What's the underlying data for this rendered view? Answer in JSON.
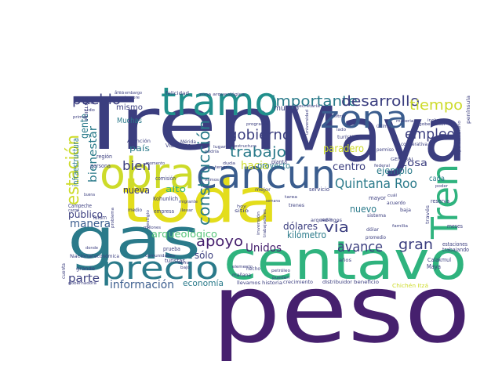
{
  "palette": {
    "navy": "#3b3e7f",
    "purple": "#46206e",
    "teal": "#21908c",
    "teal2": "#2a7a8a",
    "green": "#2fb37e",
    "lime": "#cddb2a",
    "yellow": "#e3dd1c",
    "blue": "#3b5d8e",
    "mint": "#58c57a"
  },
  "words": [
    {
      "text": "peso",
      "color": "#46206e",
      "weight": 100
    },
    {
      "text": "Maya",
      "color": "#3b3e7f",
      "weight": 95
    },
    {
      "text": "Tren",
      "color": "#3b3e7f",
      "weight": 92
    },
    {
      "text": "toda",
      "color": "#e3dd1c",
      "weight": 85
    },
    {
      "text": "centavo",
      "color": "#2fb37e",
      "weight": 80
    },
    {
      "text": "gas",
      "color": "#2a7a8a",
      "weight": 78
    },
    {
      "text": "tramo",
      "color": "#21908c",
      "weight": 72
    },
    {
      "text": "cancún",
      "color": "#3b5d8e",
      "weight": 70
    },
    {
      "text": "obra",
      "color": "#cddb2a",
      "weight": 68
    },
    {
      "text": "precio",
      "color": "#2a7a8a",
      "weight": 66
    },
    {
      "text": "zona",
      "color": "#3b5d8e",
      "weight": 60
    },
    {
      "text": "Tren",
      "color": "#2fb37e",
      "weight": 55
    },
    {
      "text": "construcción",
      "color": "#2a7a8a",
      "weight": 45
    },
    {
      "text": "estación",
      "color": "#cddb2a",
      "weight": 44
    },
    {
      "text": "importante",
      "color": "#2a7a8a",
      "weight": 42
    },
    {
      "text": "desarrollo",
      "color": "#3b3e7f",
      "weight": 42
    },
    {
      "text": "Quintana Roo",
      "color": "#2a7a8a",
      "weight": 40
    },
    {
      "text": "tiempo",
      "color": "#cddb2a",
      "weight": 40
    },
    {
      "text": "pueblo",
      "color": "#3b3e7f",
      "weight": 38
    },
    {
      "text": "gobierno",
      "color": "#3b3e7f",
      "weight": 38
    },
    {
      "text": "trabajo",
      "color": "#2a7a8a",
      "weight": 38
    },
    {
      "text": "apoyo",
      "color": "#46206e",
      "weight": 38
    },
    {
      "text": "empleo",
      "color": "#3b3e7f",
      "weight": 36
    },
    {
      "text": "avance",
      "color": "#3b3e7f",
      "weight": 36
    },
    {
      "text": "gran",
      "color": "#3b3e7f",
      "weight": 36
    },
    {
      "text": "vía",
      "color": "#3b3e7f",
      "weight": 34
    },
    {
      "text": "hacia",
      "color": "#cddb2a",
      "weight": 32
    },
    {
      "text": "bien",
      "color": "#3b3e7f",
      "weight": 32
    },
    {
      "text": "Unidos",
      "color": "#46206e",
      "weight": 32
    },
    {
      "text": "información",
      "color": "#3b5d8e",
      "weight": 32
    },
    {
      "text": "parte",
      "color": "#3b3e7f",
      "weight": 32
    },
    {
      "text": "manera",
      "color": "#3b5d8e",
      "weight": 30
    },
    {
      "text": "arqueológico",
      "color": "#58c57a",
      "weight": 30
    },
    {
      "text": "bienestar",
      "color": "#2a7a8a",
      "weight": 30
    },
    {
      "text": "centro",
      "color": "#3b3e7f",
      "weight": 30
    },
    {
      "text": "cosa",
      "color": "#3b3e7f",
      "weight": 30
    },
    {
      "text": "mundo",
      "color": "#3b3e7f",
      "weight": 28
    },
    {
      "text": "nuevo",
      "color": "#2a7a8a",
      "weight": 28
    },
    {
      "text": "ejemplo",
      "color": "#2a7a8a",
      "weight": 28
    },
    {
      "text": "público",
      "color": "#3b3e7f",
      "weight": 28
    },
    {
      "text": "paradero",
      "color": "#cddb2a",
      "weight": 28
    },
    {
      "text": "kilómetro",
      "color": "#2a7a8a",
      "weight": 28
    },
    {
      "text": "dólares",
      "color": "#3b3e7f",
      "weight": 28
    },
    {
      "text": "nueva",
      "color": "#3b3e7f",
      "weight": 28
    },
    {
      "text": "sólo",
      "color": "#3b3e7f",
      "weight": 28
    },
    {
      "text": "alto",
      "color": "#2fb37e",
      "weight": 28
    },
    {
      "text": "país",
      "color": "#2a7a8a",
      "weight": 28
    },
    {
      "text": "economía",
      "color": "#2a7a8a",
      "weight": 28
    },
    {
      "text": "gente",
      "color": "#2a7a8a",
      "weight": 28
    },
    {
      "text": "proyecto",
      "color": "#2a7a8a",
      "weight": 26
    },
    {
      "text": "mismo",
      "color": "#3b3e7f",
      "weight": 26
    },
    {
      "text": "Muchas",
      "color": "#2a7a8a",
      "weight": 26
    },
    {
      "text": "infraestructura",
      "color": "#2a7a8a",
      "weight": 26
    },
    {
      "text": "cada",
      "color": "#2a7a8a",
      "weight": 20
    },
    {
      "text": "Maya",
      "color": "#3b3e7f",
      "weight": 18
    },
    {
      "text": "Campeche",
      "color": "#3b3e7f",
      "weight": 16
    },
    {
      "text": "planta",
      "color": "#3b3e7f",
      "weight": 16
    },
    {
      "text": "mayor",
      "color": "#3b3e7f",
      "weight": 16
    },
    {
      "text": "reserva",
      "color": "#3b3e7f",
      "weight": 16
    },
    {
      "text": "servicio",
      "color": "#3b3e7f",
      "weight": 16
    },
    {
      "text": "turistas",
      "color": "#3b3e7f",
      "weight": 16
    },
    {
      "text": "prueba",
      "color": "#3b3e7f",
      "weight": 16
    },
    {
      "text": "empresa",
      "color": "#3b3e7f",
      "weight": 16
    },
    {
      "text": "persona",
      "color": "#3b3e7f",
      "weight": 16
    },
    {
      "text": "comisión",
      "color": "#3b3e7f",
      "weight": 16
    },
    {
      "text": "región",
      "color": "#3b3e7f",
      "weight": 16
    },
    {
      "text": "Kohunlich",
      "color": "#3b3e7f",
      "weight": 15
    },
    {
      "text": "Tulum",
      "color": "#3b3e7f",
      "weight": 15
    },
    {
      "text": "Visitantes",
      "color": "#3b3e7f",
      "weight": 15
    },
    {
      "text": "Mérida",
      "color": "#3b3e7f",
      "weight": 14
    },
    {
      "text": "Calakmul",
      "color": "#3b3e7f",
      "weight": 15
    },
    {
      "text": "estaciones",
      "color": "#3b3e7f",
      "weight": 15
    },
    {
      "text": "trabajando",
      "color": "#3b3e7f",
      "weight": 15
    },
    {
      "text": "meses",
      "color": "#3b3e7f",
      "weight": 15
    },
    {
      "text": "Chichén Itzá",
      "color": "#cddb2a",
      "weight": 15
    },
    {
      "text": "distribuidor",
      "color": "#3b3e7f",
      "weight": 14
    },
    {
      "text": "beneficio",
      "color": "#3b3e7f",
      "weight": 14
    },
    {
      "text": "crecimiento",
      "color": "#3b3e7f",
      "weight": 14
    },
    {
      "text": "historia",
      "color": "#3b3e7f",
      "weight": 14
    },
    {
      "text": "llevamos",
      "color": "#3b3e7f",
      "weight": 14
    },
    {
      "text": "mañana",
      "color": "#3b3e7f",
      "weight": 14
    },
    {
      "text": "hecho",
      "color": "#3b3e7f",
      "weight": 14
    },
    {
      "text": "petróleo",
      "color": "#3b3e7f",
      "weight": 13
    },
    {
      "text": "elemento",
      "color": "#3b3e7f",
      "weight": 13
    },
    {
      "text": "grande",
      "color": "#3b3e7f",
      "weight": 14
    },
    {
      "text": "gobernadora",
      "color": "#3b3e7f",
      "weight": 13
    },
    {
      "text": "Nacional",
      "color": "#3b3e7f",
      "weight": 14
    },
    {
      "text": "económica",
      "color": "#3b3e7f",
      "weight": 14
    },
    {
      "text": "cuenta",
      "color": "#3b3e7f",
      "weight": 13
    },
    {
      "text": "pueden",
      "color": "#3b3e7f",
      "weight": 13
    },
    {
      "text": "trenes",
      "color": "#3b3e7f",
      "weight": 13
    },
    {
      "text": "tarea",
      "color": "#3b3e7f",
      "weight": 13
    },
    {
      "text": "sitio",
      "color": "#3b3e7f",
      "weight": 13
    },
    {
      "text": "hoy",
      "color": "#3b3e7f",
      "weight": 13
    },
    {
      "text": "mejor",
      "color": "#3b3e7f",
      "weight": 13
    },
    {
      "text": "sistema",
      "color": "#3b3e7f",
      "weight": 13
    },
    {
      "text": "dólar",
      "color": "#3b3e7f",
      "weight": 13
    },
    {
      "text": "promedio",
      "color": "#3b3e7f",
      "weight": 13
    },
    {
      "text": "años",
      "color": "#3b3e7f",
      "weight": 13
    },
    {
      "text": "arqueólogos",
      "color": "#3b3e7f",
      "weight": 13
    },
    {
      "text": "inversión",
      "color": "#3b3e7f",
      "weight": 13
    },
    {
      "text": "trabajadores",
      "color": "#3b3e7f",
      "weight": 13
    },
    {
      "text": "acuerdo",
      "color": "#3b3e7f",
      "weight": 13
    },
    {
      "text": "semana",
      "color": "#3b3e7f",
      "weight": 12
    },
    {
      "text": "baja",
      "color": "#3b3e7f",
      "weight": 13
    },
    {
      "text": "familia",
      "color": "#3b3e7f",
      "weight": 12
    },
    {
      "text": "cuál",
      "color": "#3b3e7f",
      "weight": 12
    },
    {
      "text": "través",
      "color": "#3b3e7f",
      "weight": 12
    },
    {
      "text": "tipo cambiario",
      "color": "#3b3e7f",
      "weight": 12
    },
    {
      "text": "península",
      "color": "#3b3e7f",
      "weight": 12
    },
    {
      "text": "incluso",
      "color": "#3b3e7f",
      "weight": 12
    },
    {
      "text": "gobernador",
      "color": "#3b3e7f",
      "weight": 12
    },
    {
      "text": "material",
      "color": "#3b3e7f",
      "weight": 12
    },
    {
      "text": "cooperativa",
      "color": "#3b3e7f",
      "weight": 12
    },
    {
      "text": "permiso",
      "color": "#3b3e7f",
      "weight": 12
    },
    {
      "text": "turístico",
      "color": "#3b3e7f",
      "weight": 12
    },
    {
      "text": "último",
      "color": "#3b3e7f",
      "weight": 12
    },
    {
      "text": "litro",
      "color": "#3b3e7f",
      "weight": 12
    },
    {
      "text": "programa",
      "color": "#3b3e7f",
      "weight": 12
    },
    {
      "text": "secretaría",
      "color": "#3b3e7f",
      "weight": 12
    },
    {
      "text": "universidad",
      "color": "#3b3e7f",
      "weight": 12
    },
    {
      "text": "estructura",
      "color": "#3b3e7f",
      "weight": 12
    },
    {
      "text": "podría",
      "color": "#3b3e7f",
      "weight": 12
    },
    {
      "text": "vamos",
      "color": "#3b3e7f",
      "weight": 12
    },
    {
      "text": "lugar",
      "color": "#3b3e7f",
      "weight": 12
    },
    {
      "text": "verdad",
      "color": "#3b3e7f",
      "weight": 12
    },
    {
      "text": "felicidad",
      "color": "#3b3e7f",
      "weight": 12
    },
    {
      "text": "Atención",
      "color": "#3b3e7f",
      "weight": 12
    },
    {
      "text": "embargo",
      "color": "#3b3e7f",
      "weight": 12
    },
    {
      "text": "siempre",
      "color": "#3b3e7f",
      "weight": 12
    },
    {
      "text": "área",
      "color": "#3b3e7f",
      "weight": 12
    },
    {
      "text": "sido",
      "color": "#3b3e7f",
      "weight": 12
    },
    {
      "text": "primer",
      "color": "#3b3e7f",
      "weight": 12
    },
    {
      "text": "zona arqueológica",
      "color": "#3b3e7f",
      "weight": 12
    },
    {
      "text": "momento",
      "color": "#3b3e7f",
      "weight": 12
    },
    {
      "text": "millones",
      "color": "#3b3e7f",
      "weight": 12
    },
    {
      "text": "migrante",
      "color": "#3b3e7f",
      "weight": 12
    },
    {
      "text": "problema",
      "color": "#3b3e7f",
      "weight": 12
    },
    {
      "text": "vestigio",
      "color": "#3b3e7f",
      "weight": 12
    },
    {
      "text": "llevar",
      "color": "#3b3e7f",
      "weight": 12
    },
    {
      "text": "tierra",
      "color": "#3b3e7f",
      "weight": 12
    },
    {
      "text": "comunidades",
      "color": "#3b3e7f",
      "weight": 12
    },
    {
      "text": "medio",
      "color": "#3b3e7f",
      "weight": 12
    },
    {
      "text": "donde",
      "color": "#3b3e7f",
      "weight": 12
    },
    {
      "text": "carga",
      "color": "#3b3e7f",
      "weight": 12
    },
    {
      "text": "buena",
      "color": "#3b3e7f",
      "weight": 12
    },
    {
      "text": "seguir",
      "color": "#3b3e7f",
      "weight": 12
    },
    {
      "text": "poder",
      "color": "#3b3e7f",
      "weight": 12
    },
    {
      "text": "federal",
      "color": "#3b3e7f",
      "weight": 12
    },
    {
      "text": "GENERAL",
      "color": "#3b3e7f",
      "weight": 12
    },
    {
      "text": "lado",
      "color": "#3b3e7f",
      "weight": 12
    },
    {
      "text": "tener",
      "color": "#3b3e7f",
      "weight": 12
    },
    {
      "text": "duda",
      "color": "#3b3e7f",
      "weight": 12
    },
    {
      "text": "PHILLIPS",
      "color": "#3b3e7f",
      "weight": 12
    },
    {
      "text": "bajo",
      "color": "#3b3e7f",
      "weight": 12
    },
    {
      "text": "sido",
      "color": "#3b3e7f",
      "weight": 12
    }
  ]
}
